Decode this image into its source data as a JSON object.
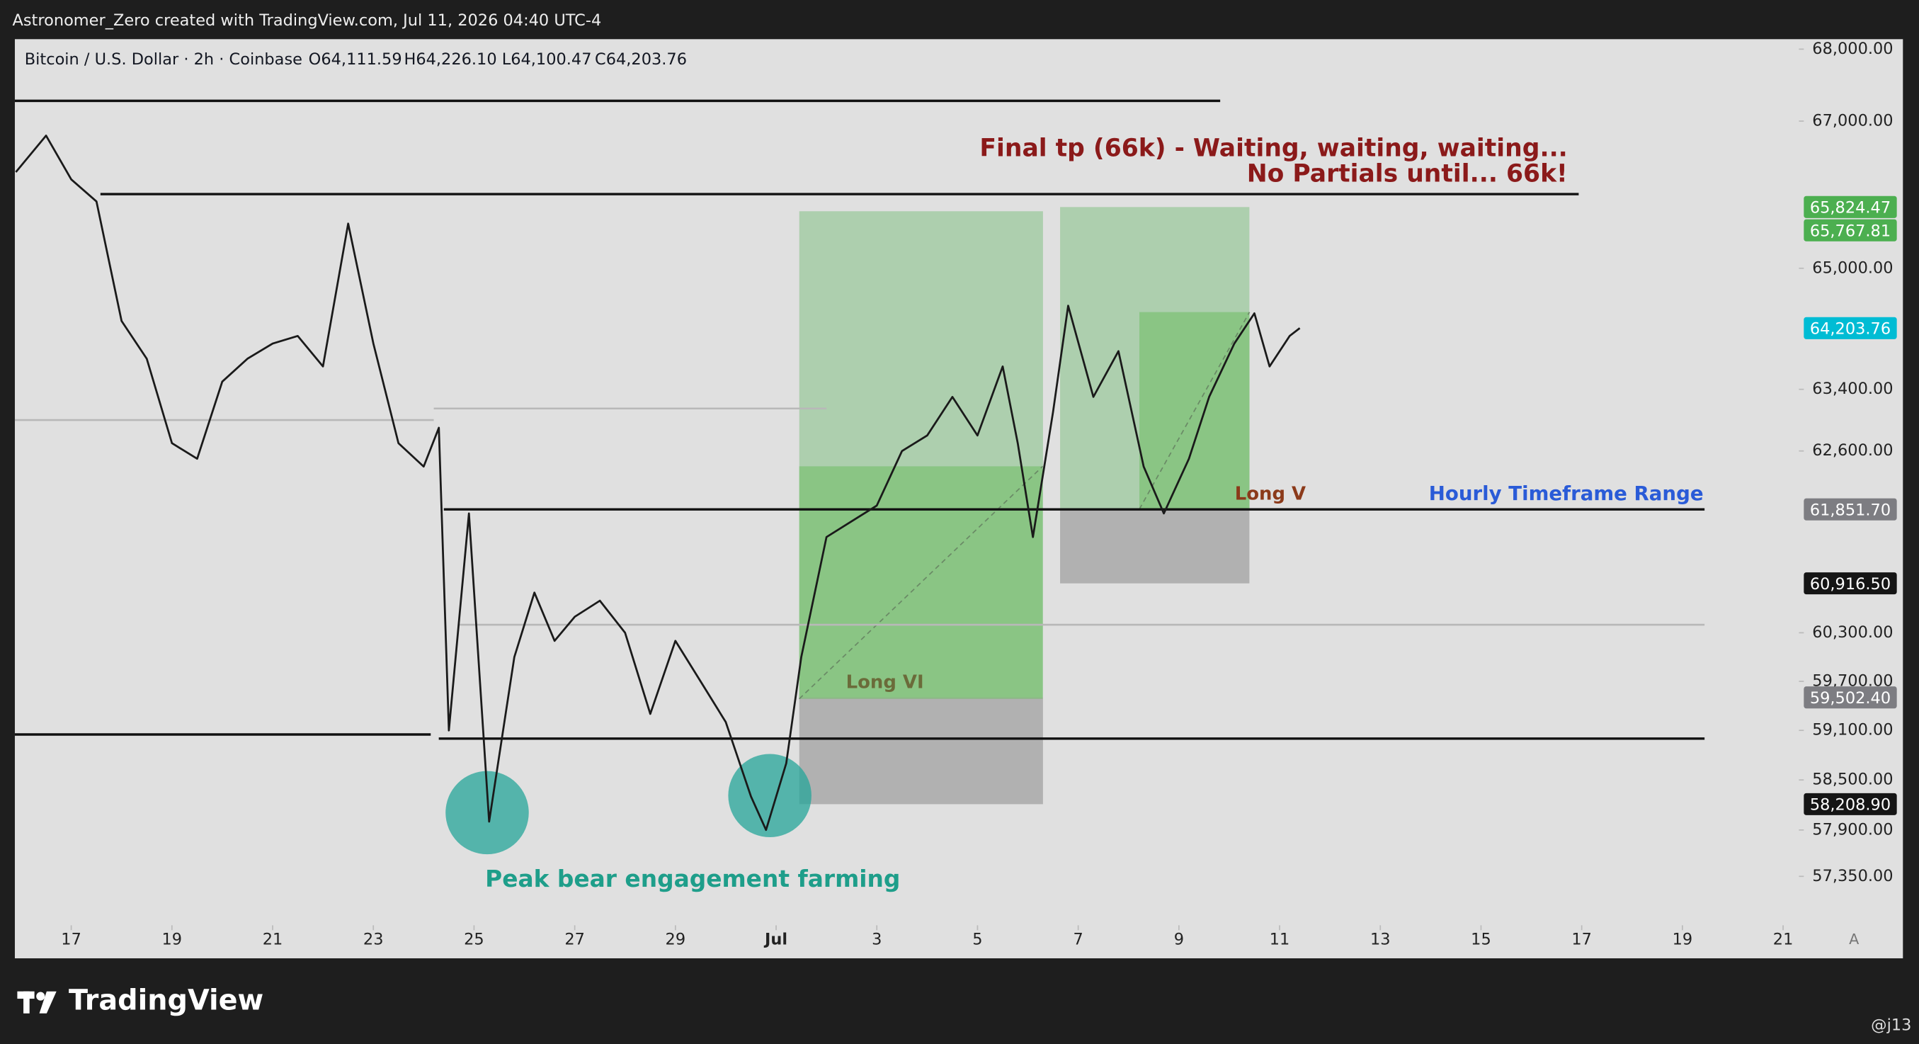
{
  "header": {
    "credit": "Astronomer_Zero created with TradingView.com, Jul 11, 2026 04:40 UTC-4"
  },
  "chart_data": {
    "type": "line",
    "symbol": "Bitcoin / U.S. Dollar · 2h · Coinbase",
    "ohlc": [
      "O64,111.59",
      "H64,226.10",
      "L64,100.47",
      "C64,203.76"
    ],
    "log_scale": true,
    "xlim": [
      15.88,
      53.38
    ],
    "ylim": [
      56390,
      68140
    ],
    "xticks": [
      {
        "value": 17,
        "label": "17"
      },
      {
        "value": 19,
        "label": "19"
      },
      {
        "value": 21,
        "label": "21"
      },
      {
        "value": 23,
        "label": "23"
      },
      {
        "value": 25,
        "label": "25"
      },
      {
        "value": 27,
        "label": "27"
      },
      {
        "value": 29,
        "label": "29"
      },
      {
        "value": 31,
        "label": "Jul"
      },
      {
        "value": 33,
        "label": "3"
      },
      {
        "value": 35,
        "label": "5"
      },
      {
        "value": 37,
        "label": "7"
      },
      {
        "value": 39,
        "label": "9"
      },
      {
        "value": 41,
        "label": "11"
      },
      {
        "value": 43,
        "label": "13"
      },
      {
        "value": 45,
        "label": "15"
      },
      {
        "value": 47,
        "label": "17"
      },
      {
        "value": 49,
        "label": "19"
      },
      {
        "value": 51,
        "label": "21"
      }
    ],
    "yticks": [
      {
        "value": 68000,
        "label": "68,000.00"
      },
      {
        "value": 67000,
        "label": "67,000.00"
      },
      {
        "value": 65000,
        "label": "65,000.00"
      },
      {
        "value": 63400,
        "label": "63,400.00"
      },
      {
        "value": 62600,
        "label": "62,600.00"
      },
      {
        "value": 60300,
        "label": "60,300.00"
      },
      {
        "value": 59700,
        "label": "59,700.00"
      },
      {
        "value": 59100,
        "label": "59,100.00"
      },
      {
        "value": 58500,
        "label": "58,500.00"
      },
      {
        "value": 57900,
        "label": "57,900.00"
      },
      {
        "value": 57350,
        "label": "57,350.00"
      }
    ],
    "x": [
      15.9,
      16.5,
      17,
      17.5,
      18,
      18.5,
      19,
      19.5,
      20,
      20.5,
      21,
      21.5,
      22,
      22.5,
      23,
      23.5,
      24,
      24.3,
      24.5,
      24.9,
      25.3,
      25.8,
      26.2,
      26.6,
      27,
      27.5,
      28,
      28.5,
      29,
      29.5,
      30,
      30.5,
      30.8,
      31.2,
      31.5,
      32,
      32.5,
      33,
      33.5,
      34,
      34.5,
      35,
      35.5,
      35.8,
      36.1,
      36.5,
      36.8,
      37.3,
      37.8,
      38.3,
      38.7,
      39.2,
      39.6,
      40.1,
      40.5,
      40.8,
      41.2,
      41.4
    ],
    "series": [
      {
        "color": "#1a1a1a",
        "values": [
          66300,
          66800,
          66200,
          65900,
          64300,
          63800,
          62700,
          62500,
          63500,
          63800,
          64000,
          64100,
          63700,
          65600,
          64000,
          62700,
          62400,
          62900,
          59100,
          61800,
          58000,
          60000,
          60800,
          60200,
          60500,
          60700,
          60300,
          59300,
          60200,
          59700,
          59200,
          58300,
          57900,
          58700,
          60000,
          61500,
          61700,
          61900,
          62600,
          62800,
          63300,
          62800,
          63700,
          62700,
          61500,
          63100,
          64500,
          63300,
          63900,
          62400,
          61800,
          62500,
          63300,
          64000,
          64400,
          63700,
          64100,
          64204
        ]
      }
    ],
    "levels": [
      {
        "price": 67280,
        "x": [
          15.88,
          39.82
        ],
        "color": "#111111"
      },
      {
        "price": 66000,
        "x": [
          17.58,
          46.94
        ],
        "color": "#111111"
      },
      {
        "price": 63000,
        "x": [
          15.88,
          24.2
        ],
        "color": "#b8b8b8"
      },
      {
        "price": 63150,
        "x": [
          24.2,
          32.0
        ],
        "color": "#b8b8b8"
      },
      {
        "price": 61851.7,
        "x": [
          24.4,
          49.44
        ],
        "color": "#111111"
      },
      {
        "price": 60400,
        "x": [
          24.7,
          49.44
        ],
        "color": "#b8b8b8"
      },
      {
        "price": 59050,
        "x": [
          15.88,
          24.14
        ],
        "color": "#111111"
      },
      {
        "price": 59000,
        "x": [
          24.3,
          49.44
        ],
        "color": "#111111"
      }
    ],
    "positions": [
      {
        "name": "Long VI",
        "x": [
          31.46,
          36.3
        ],
        "target": {
          "value": 65767.81,
          "label": "65,767.81"
        },
        "entry": {
          "value": 59502.4,
          "label": "59,502.40"
        },
        "stop": {
          "value": 58208.9,
          "label": "58,208.90"
        }
      },
      {
        "name": "Long V",
        "x": [
          36.64,
          40.4
        ],
        "target": {
          "value": 65824.47,
          "label": "65,824.47"
        },
        "entry": {
          "value": 61851.7,
          "label": "61,851.70"
        },
        "stop": {
          "value": 60916.5,
          "label": "60,916.50"
        }
      }
    ],
    "last_price": {
      "value": 64203.76,
      "label": "64,203.76"
    },
    "tag_colors": {
      "target": "#4caf50",
      "entry": "#7d7d82",
      "stop": "#151515",
      "last": "#00bcd4"
    },
    "annotations": {
      "final_tp": "Final tp (66k) - Waiting, waiting, waiting...",
      "no_partials": "No Partials until... 66k!",
      "range": "Hourly Timeframe Range",
      "bear": "Peak bear engagement farming"
    }
  },
  "footer": {
    "logo": "TradingView",
    "user": "@j13",
    "scale_button": "A"
  }
}
